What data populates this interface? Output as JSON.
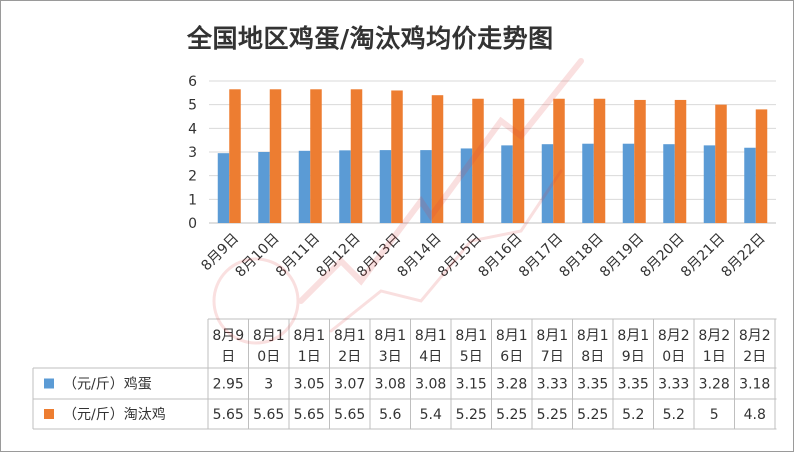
{
  "colors": {
    "eggs": "#5B9BD5",
    "culled_hens": "#ED7D31",
    "gridline": "#d9d9d9",
    "table_border": "#bfbfbf",
    "text": "#333333",
    "watermark": "#e03c3c"
  },
  "table_header_lines": [
    [
      "8月9",
      "日"
    ],
    [
      "8月1",
      "0日"
    ],
    [
      "8月1",
      "1日"
    ],
    [
      "8月1",
      "2日"
    ],
    [
      "8月1",
      "3日"
    ],
    [
      "8月1",
      "4日"
    ],
    [
      "8月1",
      "5日"
    ],
    [
      "8月1",
      "6日"
    ],
    [
      "8月1",
      "7日"
    ],
    [
      "8月1",
      "8日"
    ],
    [
      "8月1",
      "9日"
    ],
    [
      "8月2",
      "0日"
    ],
    [
      "8月2",
      "1日"
    ],
    [
      "8月2",
      "2日"
    ]
  ],
  "chart_data": {
    "type": "bar",
    "title": "全国地区鸡蛋/淘汰鸡均价走势图",
    "xlabel": "",
    "ylabel": "",
    "ylim": [
      0,
      6
    ],
    "yticks": [
      0,
      1,
      2,
      3,
      4,
      5,
      6
    ],
    "grid": true,
    "legend": "data-table",
    "categories": [
      "8月9日",
      "8月10日",
      "8月11日",
      "8月12日",
      "8月13日",
      "8月14日",
      "8月15日",
      "8月16日",
      "8月17日",
      "8月18日",
      "8月19日",
      "8月20日",
      "8月21日",
      "8月22日"
    ],
    "series": [
      {
        "name": "（元/斤）鸡蛋",
        "values": [
          2.95,
          3,
          3.05,
          3.07,
          3.08,
          3.08,
          3.15,
          3.28,
          3.33,
          3.35,
          3.35,
          3.33,
          3.28,
          3.18
        ]
      },
      {
        "name": "（元/斤）淘汰鸡",
        "values": [
          5.65,
          5.65,
          5.65,
          5.65,
          5.6,
          5.4,
          5.25,
          5.25,
          5.25,
          5.25,
          5.2,
          5.2,
          5,
          4.8
        ]
      }
    ]
  }
}
